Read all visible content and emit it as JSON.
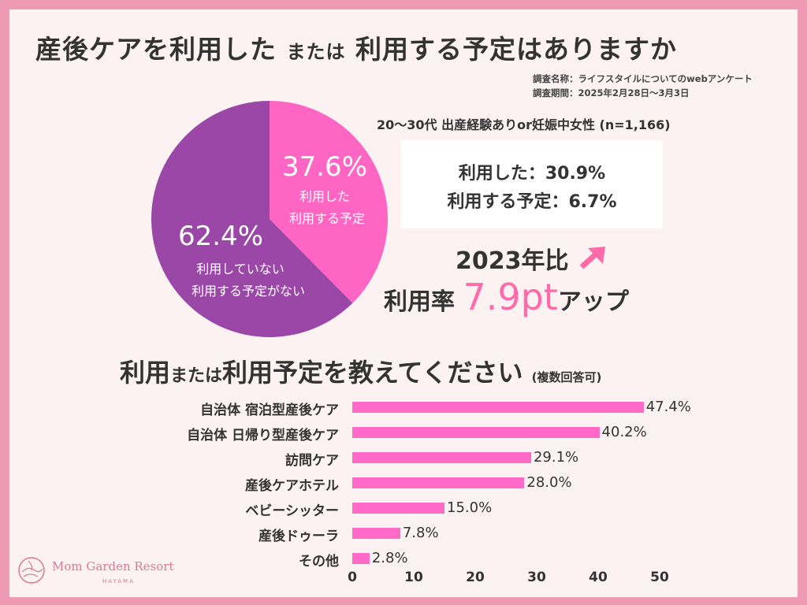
{
  "title": {
    "part1": "産後ケアを利用した",
    "part2": "または",
    "part3": "利用する予定はありますか"
  },
  "survey": {
    "name": "調査名称：ライフスタイルについてのwebアンケート",
    "period": "調査期間：2025年2月28日〜3月3日"
  },
  "sample": "20〜30代 出産経験ありor妊娠中女性 (n=1,166)",
  "colors": {
    "pink": "#ff66c4",
    "purple": "#9b47a8",
    "border": "#ee9ab5",
    "bar": "#ff6ac8",
    "accent": "#ff6aa8"
  },
  "pie": {
    "slices": [
      {
        "value": 37.6,
        "label": "37.6%",
        "desc1": "利用した",
        "desc2": "利用する予定",
        "color": "#ff66c4"
      },
      {
        "value": 62.4,
        "label": "62.4%",
        "desc1": "利用していない",
        "desc2": "利用する予定がない",
        "color": "#9b47a8"
      }
    ]
  },
  "summary": {
    "line1": "利用した：30.9%",
    "line2": "利用する予定：6.7%"
  },
  "comparison": {
    "line1": "2023年比",
    "prefix": "利用率",
    "value": "7.9pt",
    "suffix": "アップ",
    "arrow_icon": "arrow-up-right-icon"
  },
  "subtitle": {
    "part1": "利用",
    "part2": "または",
    "part3": "利用予定を教えてください",
    "note": "(複数回答可)"
  },
  "chart_data": {
    "type": "bar",
    "orientation": "horizontal",
    "categories": [
      "自治体 宿泊型産後ケア",
      "自治体 日帰り型産後ケア",
      "訪問ケア",
      "産後ケアホテル",
      "ベビーシッター",
      "産後ドゥーラ",
      "その他"
    ],
    "values": [
      47.4,
      40.2,
      29.1,
      28.0,
      15.0,
      7.8,
      2.8
    ],
    "labels": [
      "47.4%",
      "40.2%",
      "29.1%",
      "28.0%",
      "15.0%",
      "7.8%",
      "2.8%"
    ],
    "xlim": [
      0,
      50
    ],
    "ticks": [
      "0",
      "10",
      "20",
      "30",
      "40",
      "50"
    ],
    "grid": false
  },
  "logo": {
    "name": "Mom Garden Resort",
    "sub": "HAYAMA"
  }
}
